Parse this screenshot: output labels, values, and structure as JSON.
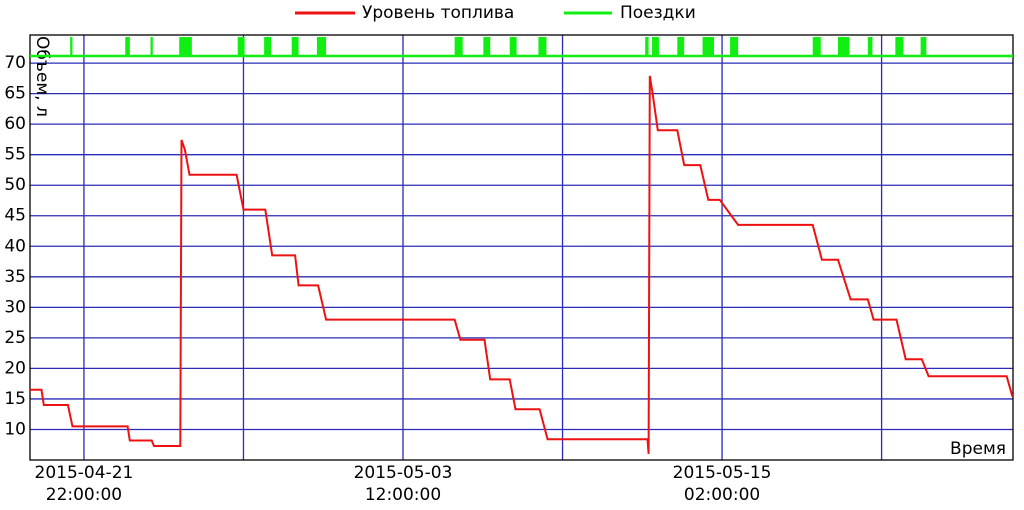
{
  "chart_data": {
    "type": "line",
    "y_label": "Объем, л",
    "x_label": "Время",
    "xlim": [
      "2015-04-19 23:00",
      "2015-05-25 15:30"
    ],
    "xticks": [
      {
        "value": "2015-04-21 22:00",
        "label": [
          "2015-04-21",
          "22:00:00"
        ]
      },
      {
        "value": "2015-05-03 12:00",
        "label": [
          "2015-05-03",
          "12:00:00"
        ]
      },
      {
        "value": "2015-05-15 02:00",
        "label": [
          "2015-05-15",
          "02:00:00"
        ]
      }
    ],
    "xgrid": [
      "2015-04-27 17:00",
      "2015-05-09 07:00",
      "2015-05-20 21:00"
    ],
    "ylim": [
      5,
      74.6
    ],
    "yticks": [
      10,
      15,
      20,
      25,
      30,
      35,
      40,
      45,
      50,
      55,
      60,
      65,
      70
    ],
    "grid": true,
    "series": [
      {
        "name": "Уровень топлива",
        "color": "#ee1111",
        "x": [
          "2015-04-19 23:00",
          "2015-04-20 09:00",
          "2015-04-20 11:00",
          "2015-04-21 08:00",
          "2015-04-21 12:00",
          "2015-04-23 12:00",
          "2015-04-23 14:00",
          "2015-04-24 09:00",
          "2015-04-24 11:00",
          "2015-04-25 10:00",
          "2015-04-25 11:00",
          "2015-04-25 14:00",
          "2015-04-25 18:00",
          "2015-04-27 11:00",
          "2015-04-27 17:00",
          "2015-04-28 12:00",
          "2015-04-28 18:00",
          "2015-04-29 14:00",
          "2015-04-29 17:00",
          "2015-04-30 10:00",
          "2015-04-30 17:00",
          "2015-05-05 09:00",
          "2015-05-05 14:00",
          "2015-05-06 11:00",
          "2015-05-06 16:00",
          "2015-05-07 09:00",
          "2015-05-07 14:00",
          "2015-05-08 11:00",
          "2015-05-08 18:00",
          "2015-05-12 09:00",
          "2015-05-12 10:00",
          "2015-05-12 11:00",
          "2015-05-12 13:00",
          "2015-05-12 18:00",
          "2015-05-13 11:00",
          "2015-05-13 17:00",
          "2015-05-14 07:00",
          "2015-05-14 14:00",
          "2015-05-15 00:00",
          "2015-05-15 16:00",
          "2015-05-18 09:00",
          "2015-05-18 17:00",
          "2015-05-19 07:00",
          "2015-05-19 18:00",
          "2015-05-20 09:00",
          "2015-05-20 14:00",
          "2015-05-21 10:00",
          "2015-05-21 18:00",
          "2015-05-22 08:00",
          "2015-05-22 14:00",
          "2015-05-25 10:00",
          "2015-05-25 15:00"
        ],
        "values": [
          16.5,
          16.5,
          14,
          14,
          10.5,
          10.5,
          8.2,
          8.2,
          7.3,
          7.3,
          57.4,
          55.8,
          51.7,
          51.7,
          46,
          46,
          38.5,
          38.5,
          33.6,
          33.6,
          28,
          28,
          24.7,
          24.7,
          18.2,
          18.2,
          13.3,
          13.3,
          8.4,
          8.4,
          6,
          67.9,
          65.6,
          59,
          59,
          53.3,
          53.3,
          47.6,
          47.6,
          43.5,
          43.5,
          37.8,
          37.8,
          31.3,
          31.3,
          28,
          28,
          21.5,
          21.5,
          18.7,
          18.7,
          15.4
        ]
      },
      {
        "name": "Поездки",
        "color": "#11ee11",
        "intervals": [
          [
            "2015-04-21 10:00",
            "2015-04-21 12:00"
          ],
          [
            "2015-04-23 10:00",
            "2015-04-23 14:00"
          ],
          [
            "2015-04-24 08:00",
            "2015-04-24 10:00"
          ],
          [
            "2015-04-25 09:00",
            "2015-04-25 20:00"
          ],
          [
            "2015-04-27 12:00",
            "2015-04-27 18:00"
          ],
          [
            "2015-04-28 11:00",
            "2015-04-28 17:00"
          ],
          [
            "2015-04-29 11:00",
            "2015-04-29 17:00"
          ],
          [
            "2015-04-30 09:00",
            "2015-04-30 17:00"
          ],
          [
            "2015-05-05 09:00",
            "2015-05-05 16:00"
          ],
          [
            "2015-05-06 10:00",
            "2015-05-06 16:00"
          ],
          [
            "2015-05-07 09:00",
            "2015-05-07 15:00"
          ],
          [
            "2015-05-08 10:00",
            "2015-05-08 17:00"
          ],
          [
            "2015-05-12 07:00",
            "2015-05-12 10:00"
          ],
          [
            "2015-05-12 13:00",
            "2015-05-12 19:00"
          ],
          [
            "2015-05-13 11:00",
            "2015-05-13 17:00"
          ],
          [
            "2015-05-14 09:00",
            "2015-05-14 19:00"
          ],
          [
            "2015-05-15 09:00",
            "2015-05-15 16:00"
          ],
          [
            "2015-05-18 09:00",
            "2015-05-18 16:00"
          ],
          [
            "2015-05-19 07:00",
            "2015-05-19 17:00"
          ],
          [
            "2015-05-20 09:00",
            "2015-05-20 13:00"
          ],
          [
            "2015-05-21 09:00",
            "2015-05-21 16:00"
          ],
          [
            "2015-05-22 07:00",
            "2015-05-22 12:00"
          ]
        ]
      }
    ]
  }
}
